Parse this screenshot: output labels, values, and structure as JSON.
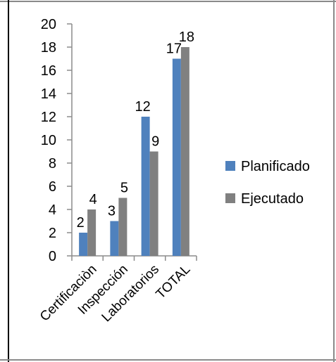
{
  "chart_data": {
    "type": "bar",
    "categories": [
      "Certificaciòn",
      "Inspección",
      "Laboratorios",
      "TOTAL"
    ],
    "series": [
      {
        "name": "Planificado",
        "values": [
          2,
          3,
          12,
          17
        ],
        "color": "#4f81bd"
      },
      {
        "name": "Ejecutado",
        "values": [
          4,
          5,
          9,
          18
        ],
        "color": "#808080"
      }
    ],
    "ylim": [
      0,
      20
    ],
    "yticks": [
      "0",
      "2",
      "4",
      "6",
      "8",
      "10",
      "12",
      "14",
      "16",
      "18",
      "20"
    ],
    "title": "",
    "xlabel": "",
    "ylabel": "",
    "legend_position": "right",
    "grid": false
  }
}
